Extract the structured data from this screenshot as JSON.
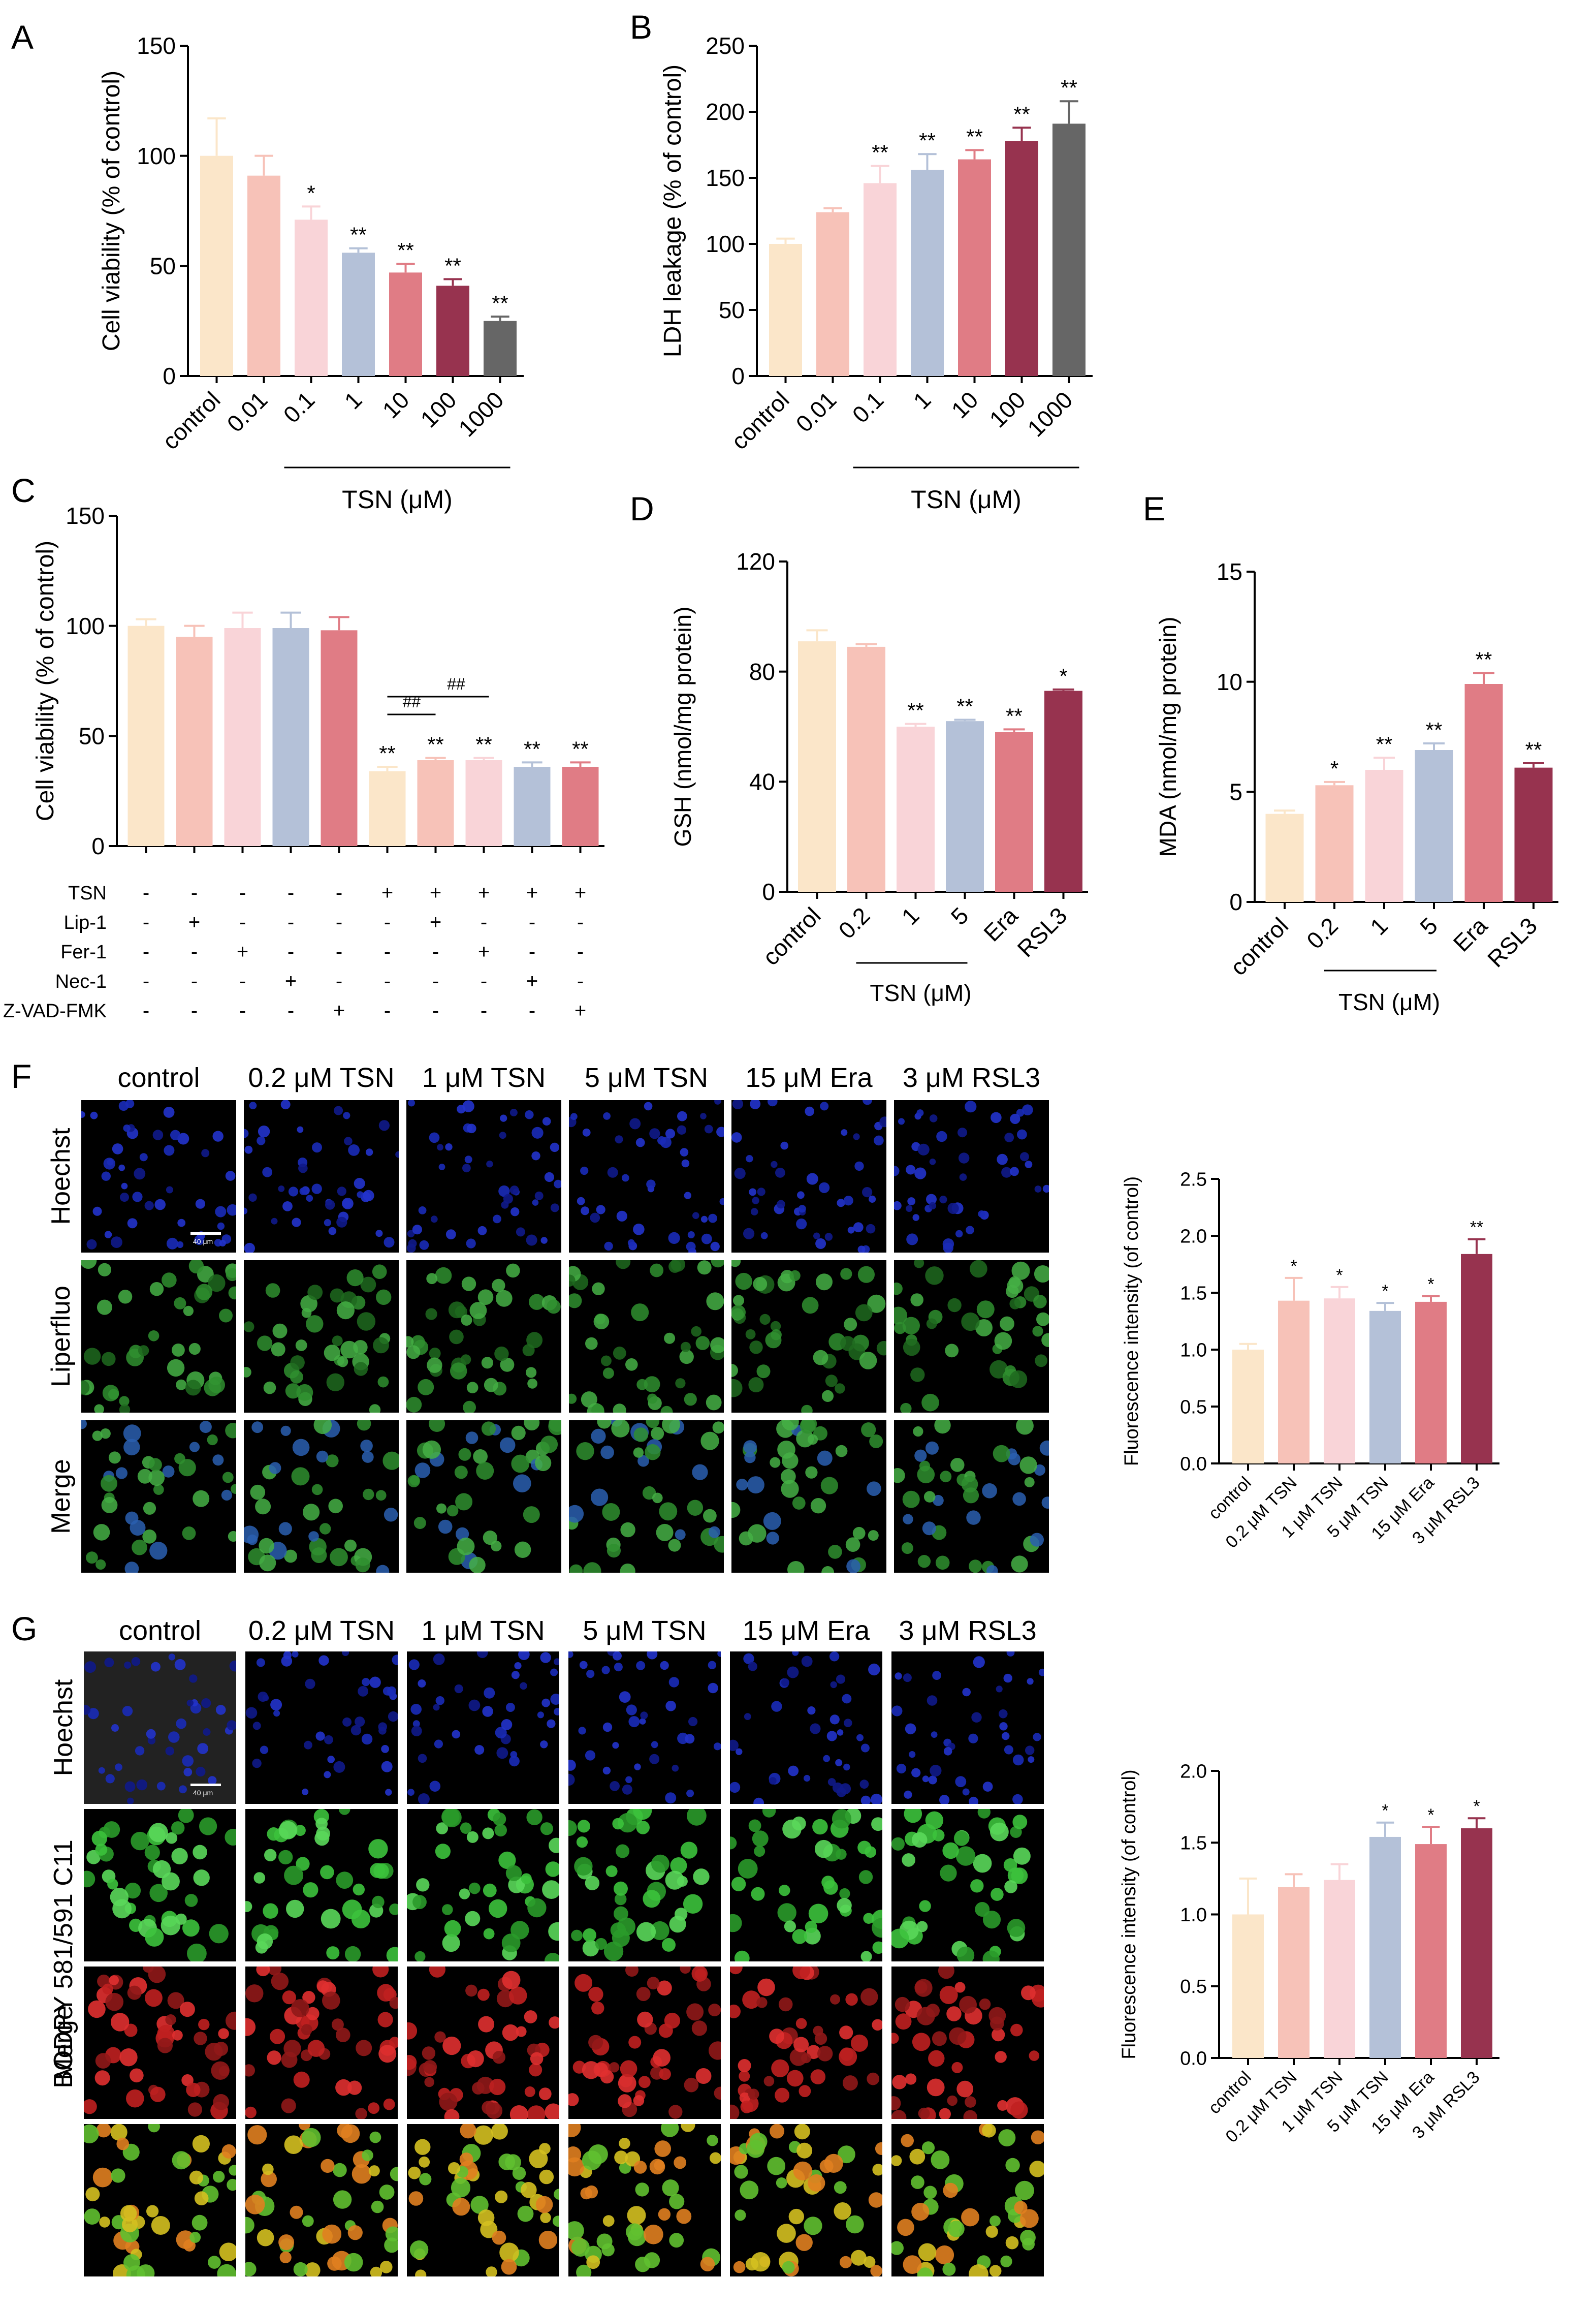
{
  "panel_letters": [
    "A",
    "B",
    "C",
    "D",
    "E",
    "F",
    "G"
  ],
  "colors": {
    "control": "#fbe6c9",
    "c2": "#f7c2b8",
    "c3": "#f9d4d8",
    "c4": "#b4c1d8",
    "c5": "#e07c85",
    "c6": "#97334f",
    "c7": "#666666"
  },
  "chart_data": [
    {
      "id": "A",
      "type": "bar",
      "ylabel": "Cell viability (% of control)",
      "ylim": [
        0,
        150
      ],
      "yticks": [
        0,
        50,
        100,
        150
      ],
      "categories": [
        "control",
        "0.01",
        "0.1",
        "1",
        "10",
        "100",
        "1000"
      ],
      "values": [
        100,
        91,
        71,
        56,
        47,
        41,
        25
      ],
      "errors": [
        17,
        9,
        6,
        2,
        4,
        3,
        2
      ],
      "annotations": [
        "",
        "",
        "*",
        "**",
        "**",
        "**",
        "**"
      ],
      "group_label": "TSN (μM)"
    },
    {
      "id": "B",
      "type": "bar",
      "ylabel": "LDH leakage (% of control)",
      "ylim": [
        0,
        250
      ],
      "yticks": [
        0,
        50,
        100,
        150,
        200,
        250
      ],
      "categories": [
        "control",
        "0.01",
        "0.1",
        "1",
        "10",
        "100",
        "1000"
      ],
      "values": [
        100,
        124,
        146,
        156,
        164,
        178,
        191
      ],
      "errors": [
        4,
        3,
        13,
        12,
        7,
        10,
        17
      ],
      "annotations": [
        "",
        "",
        "**",
        "**",
        "**",
        "**",
        "**"
      ],
      "group_label": "TSN (μM)"
    },
    {
      "id": "C",
      "type": "bar",
      "ylabel": "Cell viability (% of control)",
      "ylim": [
        0,
        150
      ],
      "yticks": [
        0,
        50,
        100,
        150
      ],
      "values": [
        100,
        95,
        99,
        99,
        98,
        34,
        39,
        39,
        36,
        36
      ],
      "errors": [
        3,
        5,
        7,
        7,
        6,
        2,
        1,
        1,
        2,
        2
      ],
      "annotations": [
        "",
        "",
        "",
        "",
        "",
        "**",
        "**",
        "**",
        "**",
        "**"
      ],
      "brackets": [
        "##",
        "##"
      ],
      "treatments": [
        {
          "label": "TSN",
          "signs": [
            "-",
            "-",
            "-",
            "-",
            "-",
            "+",
            "+",
            "+",
            "+",
            "+"
          ]
        },
        {
          "label": "Lip-1",
          "signs": [
            "-",
            "+",
            "-",
            "-",
            "-",
            "-",
            "+",
            "-",
            "-",
            "-"
          ]
        },
        {
          "label": "Fer-1",
          "signs": [
            "-",
            "-",
            "+",
            "-",
            "-",
            "-",
            "-",
            "+",
            "-",
            "-"
          ]
        },
        {
          "label": "Nec-1",
          "signs": [
            "-",
            "-",
            "-",
            "+",
            "-",
            "-",
            "-",
            "-",
            "+",
            "-"
          ]
        },
        {
          "label": "Z-VAD-FMK",
          "signs": [
            "-",
            "-",
            "-",
            "-",
            "+",
            "-",
            "-",
            "-",
            "-",
            "+"
          ]
        }
      ]
    },
    {
      "id": "D",
      "type": "bar",
      "ylabel": "GSH (nmol/mg protein)",
      "ylim": [
        0,
        120
      ],
      "yticks": [
        0,
        40,
        80,
        120
      ],
      "categories": [
        "control",
        "0.2",
        "1",
        "5",
        "Era",
        "RSL3"
      ],
      "values": [
        91,
        89,
        60,
        62,
        58,
        73
      ],
      "errors": [
        4,
        1,
        1,
        0.5,
        1,
        0.5
      ],
      "annotations": [
        "",
        "",
        "**",
        "**",
        "**",
        "*"
      ],
      "group_label": "TSN (μM)"
    },
    {
      "id": "E",
      "type": "bar",
      "ylabel": "MDA (nmol/mg protein)",
      "ylim": [
        0,
        15
      ],
      "yticks": [
        0,
        5,
        10,
        15
      ],
      "categories": [
        "control",
        "0.2",
        "1",
        "5",
        "Era",
        "RSL3"
      ],
      "values": [
        4.0,
        5.3,
        6.0,
        6.9,
        9.9,
        6.1
      ],
      "errors": [
        0.15,
        0.15,
        0.55,
        0.3,
        0.5,
        0.2
      ],
      "annotations": [
        "",
        "*",
        "**",
        "**",
        "**",
        "**"
      ],
      "group_label": "TSN (μM)"
    },
    {
      "id": "F",
      "type": "bar",
      "ylabel": "Fluorescence intensity (of control)",
      "ylim": [
        0,
        2.5
      ],
      "yticks": [
        0.0,
        0.5,
        1.0,
        1.5,
        2.0,
        2.5
      ],
      "categories": [
        "control",
        "0.2 μM TSN",
        "1 μM TSN",
        "5 μM TSN",
        "15 μM Era",
        "3 μM RSL3"
      ],
      "values": [
        1.0,
        1.43,
        1.45,
        1.34,
        1.42,
        1.84
      ],
      "errors": [
        0.05,
        0.2,
        0.1,
        0.07,
        0.05,
        0.13
      ],
      "annotations": [
        "",
        "*",
        "*",
        "*",
        "*",
        "**"
      ]
    },
    {
      "id": "G",
      "type": "bar",
      "ylabel": "Fluorescence intensity (of control)",
      "ylim": [
        0,
        2.0
      ],
      "yticks": [
        0.0,
        0.5,
        1.0,
        1.5,
        2.0
      ],
      "categories": [
        "control",
        "0.2 μM TSN",
        "1 μM TSN",
        "5 μM TSN",
        "15 μM Era",
        "3 μM RSL3"
      ],
      "values": [
        1.0,
        1.19,
        1.24,
        1.54,
        1.49,
        1.6
      ],
      "errors": [
        0.25,
        0.09,
        0.11,
        0.1,
        0.12,
        0.07
      ],
      "annotations": [
        "",
        "",
        "",
        "*",
        "*",
        "*"
      ]
    }
  ],
  "image_grid_F": {
    "columns": [
      "control",
      "0.2 μM TSN",
      "1 μM TSN",
      "5 μM TSN",
      "15 μM Era",
      "3 μM RSL3"
    ],
    "rows": [
      "Hoechst",
      "Liperfluo",
      "Merge"
    ],
    "scale": "40 μm"
  },
  "image_grid_G": {
    "columns": [
      "control",
      "0.2 μM TSN",
      "1 μM TSN",
      "5 μM TSN",
      "15 μM Era",
      "3 μM RSL3"
    ],
    "rows": [
      "Hoechst",
      "BODPY 581/591 C11",
      "Merge"
    ],
    "scale": "40 μm"
  }
}
